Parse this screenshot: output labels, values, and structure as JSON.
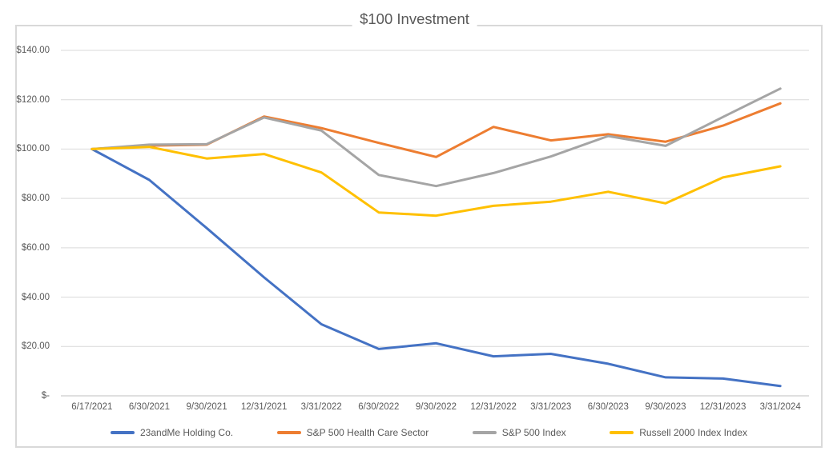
{
  "title": "$100 Investment",
  "colors": {
    "series_blue": "#4472C4",
    "series_orange": "#ED7D31",
    "series_gray": "#A5A5A5",
    "series_yellow": "#FFC000",
    "gridline": "#D9D9D9",
    "axis_line": "#BFBFBF",
    "text": "#595959",
    "chart_border": "#D9D9D9"
  },
  "chart_data": {
    "type": "line",
    "title": "$100 Investment",
    "categories": [
      "6/17/2021",
      "6/30/2021",
      "9/30/2021",
      "12/31/2021",
      "3/31/2022",
      "6/30/2022",
      "9/30/2022",
      "12/31/2022",
      "3/31/2023",
      "6/30/2023",
      "9/30/2023",
      "12/31/2023",
      "3/31/2024"
    ],
    "series": [
      {
        "name": "23andMe Holding Co.",
        "color": "#4472C4",
        "values": [
          100,
          87.5,
          68,
          48,
          29,
          19,
          21.3,
          16,
          17,
          13,
          7.5,
          7,
          4
        ]
      },
      {
        "name": "S&P 500 Health Care Sector",
        "color": "#ED7D31",
        "values": [
          100,
          101.4,
          101.8,
          113.2,
          108.5,
          102.5,
          96.8,
          109,
          103.5,
          106,
          103,
          109.5,
          118.5
        ]
      },
      {
        "name": "S&P 500 Index",
        "color": "#A5A5A5",
        "values": [
          100,
          101.8,
          102,
          112.8,
          107.5,
          89.5,
          85,
          90.3,
          97,
          105.3,
          101.3,
          113,
          124.5
        ]
      },
      {
        "name": "Russell 2000 Index Index",
        "color": "#FFC000",
        "values": [
          100,
          100.9,
          96.2,
          98,
          90.5,
          74.3,
          73,
          77,
          78.7,
          82.7,
          78,
          88.5,
          93
        ]
      }
    ],
    "y_ticks": [
      {
        "value": 140,
        "label": "$140.00"
      },
      {
        "value": 120,
        "label": "$120.00"
      },
      {
        "value": 100,
        "label": "$100.00"
      },
      {
        "value": 80,
        "label": "$80.00"
      },
      {
        "value": 60,
        "label": "$60.00"
      },
      {
        "value": 40,
        "label": "$40.00"
      },
      {
        "value": 20,
        "label": "$20.00"
      },
      {
        "value": 0,
        "label": "$-"
      }
    ],
    "ylim": [
      0,
      140
    ],
    "grid": "horizontal",
    "legend_position": "bottom"
  }
}
